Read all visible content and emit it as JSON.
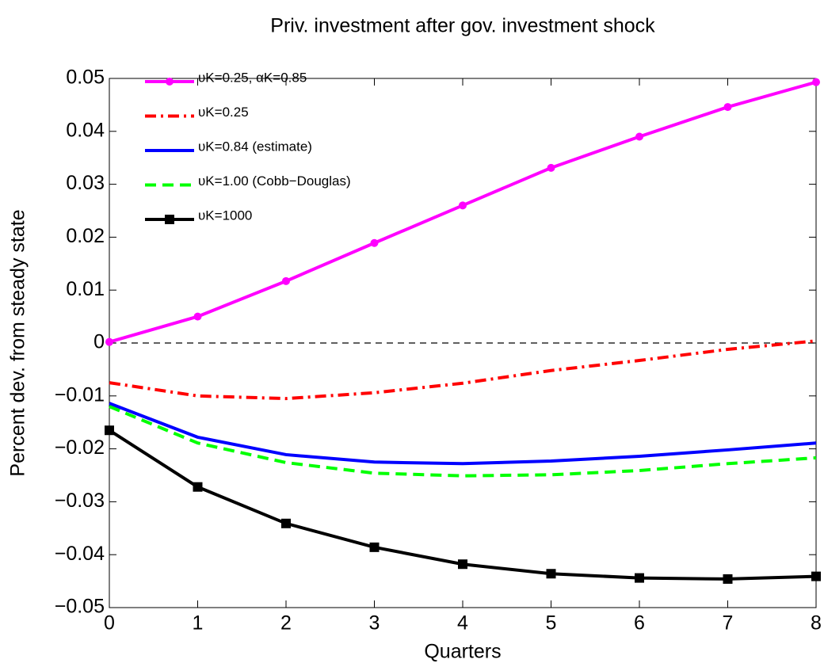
{
  "chart_data": {
    "type": "line",
    "title": "Priv. investment after gov. investment shock",
    "xlabel": "Quarters",
    "ylabel": "Percent dev. from steady state",
    "x": [
      0,
      1,
      2,
      3,
      4,
      5,
      6,
      7,
      8
    ],
    "xlim": [
      0,
      8
    ],
    "xticks": [
      0,
      1,
      2,
      3,
      4,
      5,
      6,
      7,
      8
    ],
    "ylim": [
      -0.05,
      0.05
    ],
    "yticks": [
      {
        "value": -0.05,
        "label": "−0.05"
      },
      {
        "value": -0.04,
        "label": "−0.04"
      },
      {
        "value": -0.03,
        "label": "−0.03"
      },
      {
        "value": -0.02,
        "label": "−0.02"
      },
      {
        "value": -0.01,
        "label": "−0.01"
      },
      0,
      0.01,
      0.02,
      0.03,
      0.04,
      0.05
    ],
    "hline": 0,
    "legend": "upper left",
    "series": [
      {
        "name": "υK=0.25, αK=0.85",
        "color": "#ff00ff",
        "linestyle": "solid",
        "marker": "circle",
        "values": [
          0.0002,
          0.005,
          0.0117,
          0.0189,
          0.026,
          0.0331,
          0.039,
          0.0446,
          0.0493
        ]
      },
      {
        "name": "υK=0.25",
        "color": "#ff0000",
        "linestyle": "dashdot",
        "marker": "none",
        "values": [
          -0.0075,
          -0.01,
          -0.0105,
          -0.0094,
          -0.0076,
          -0.0052,
          -0.0033,
          -0.0012,
          0.0004
        ]
      },
      {
        "name": "υK=0.84 (estimate)",
        "color": "#0000ff",
        "linestyle": "solid",
        "marker": "none",
        "values": [
          -0.0114,
          -0.0178,
          -0.0211,
          -0.0225,
          -0.0228,
          -0.0223,
          -0.0214,
          -0.0202,
          -0.0189
        ]
      },
      {
        "name": "υK=1.00 (Cobb−Douglas)",
        "color": "#00ff00",
        "linestyle": "dashed",
        "marker": "none",
        "values": [
          -0.012,
          -0.0189,
          -0.0226,
          -0.0246,
          -0.0251,
          -0.0249,
          -0.0241,
          -0.0228,
          -0.0217
        ]
      },
      {
        "name": "υK=1000",
        "color": "#000000",
        "linestyle": "solid",
        "marker": "square",
        "values": [
          -0.0165,
          -0.0272,
          -0.0341,
          -0.0386,
          -0.0418,
          -0.0436,
          -0.0444,
          -0.0446,
          -0.0441
        ]
      }
    ]
  }
}
